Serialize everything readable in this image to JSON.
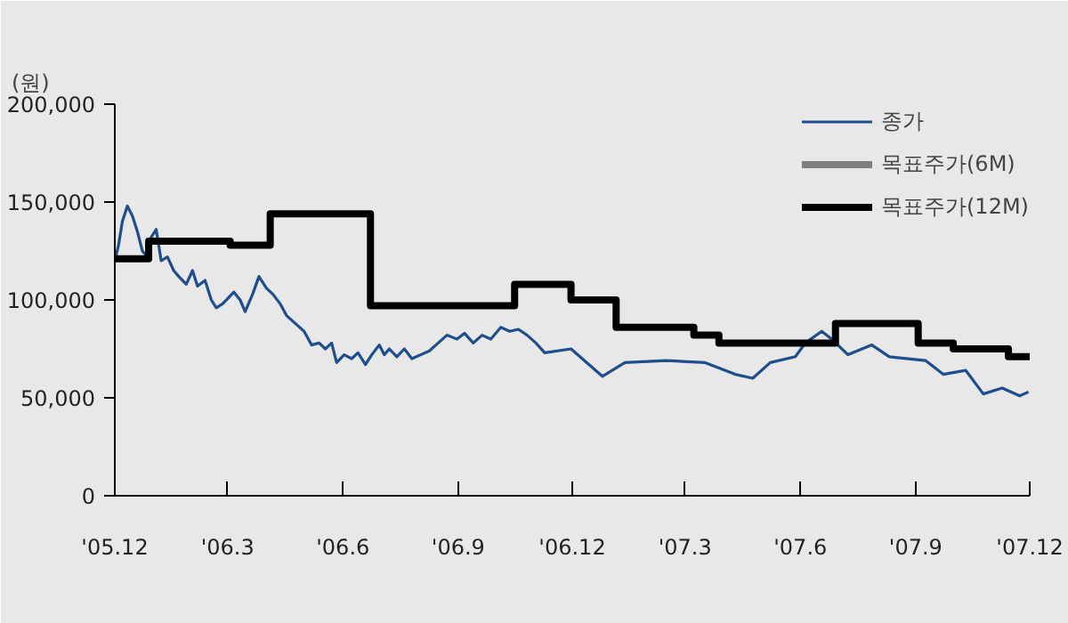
{
  "chart_data": {
    "type": "line",
    "ylabel": "(원)",
    "xlim": [
      "2005-12-01",
      "2007-12-01"
    ],
    "ylim": [
      0,
      200000
    ],
    "xticks": [
      {
        "value": "2005-12",
        "label": "'05.12"
      },
      {
        "value": "2006-03",
        "label": "'06.3"
      },
      {
        "value": "2006-06",
        "label": "'06.6"
      },
      {
        "value": "2006-09",
        "label": "'06.9"
      },
      {
        "value": "2006-12",
        "label": "'06.12"
      },
      {
        "value": "2007-03",
        "label": "'07.3"
      },
      {
        "value": "2007-06",
        "label": "'07.6"
      },
      {
        "value": "2007-09",
        "label": "'07.9"
      },
      {
        "value": "2007-12",
        "label": "'07.12"
      }
    ],
    "yticks": [
      {
        "value": 0,
        "label": "0"
      },
      {
        "value": 50000,
        "label": "50,000"
      },
      {
        "value": 100000,
        "label": "100,000"
      },
      {
        "value": 150000,
        "label": "150,000"
      },
      {
        "value": 200000,
        "label": "200,000"
      }
    ],
    "grid": false,
    "legend": "top right",
    "series": [
      {
        "name": "종가",
        "color": "#1f4e8c",
        "x": [
          "2005-12-01",
          "2005-12-04",
          "2005-12-07",
          "2005-12-11",
          "2005-12-15",
          "2005-12-19",
          "2005-12-23",
          "2005-12-27",
          "2005-12-30",
          "2006-01-03",
          "2006-01-07",
          "2006-01-12",
          "2006-01-17",
          "2006-01-21",
          "2006-01-27",
          "2006-02-01",
          "2006-02-05",
          "2006-02-11",
          "2006-02-16",
          "2006-02-20",
          "2006-02-25",
          "2006-03-06",
          "2006-03-11",
          "2006-03-15",
          "2006-03-21",
          "2006-03-26",
          "2006-04-01",
          "2006-04-06",
          "2006-04-12",
          "2006-04-17",
          "2006-04-24",
          "2006-05-01",
          "2006-05-07",
          "2006-05-13",
          "2006-05-18",
          "2006-05-23",
          "2006-05-27",
          "2006-06-02",
          "2006-06-08",
          "2006-06-13",
          "2006-06-19",
          "2006-06-24",
          "2006-06-30",
          "2006-07-04",
          "2006-07-08",
          "2006-07-14",
          "2006-07-20",
          "2006-07-26",
          "2006-08-02",
          "2006-08-09",
          "2006-08-16",
          "2006-08-23",
          "2006-08-31",
          "2006-09-06",
          "2006-09-13",
          "2006-09-20",
          "2006-09-27",
          "2006-10-05",
          "2006-10-12",
          "2006-10-19",
          "2006-10-26",
          "2006-11-02",
          "2006-11-09",
          "2006-11-30",
          "2006-12-25",
          "2007-01-12",
          "2007-02-14",
          "2007-03-17",
          "2007-04-10",
          "2007-04-24",
          "2007-05-08",
          "2007-05-28",
          "2007-06-05",
          "2007-06-18",
          "2007-06-26",
          "2007-07-09",
          "2007-07-28",
          "2007-08-11",
          "2007-09-09",
          "2007-09-23",
          "2007-10-11",
          "2007-10-25",
          "2007-11-09",
          "2007-11-23",
          "2007-11-30"
        ],
        "values": [
          120000,
          128000,
          140000,
          148000,
          143000,
          135000,
          125000,
          122000,
          132000,
          136000,
          120000,
          122000,
          115000,
          112000,
          108000,
          115000,
          107000,
          110000,
          100000,
          96000,
          98000,
          104000,
          100000,
          94000,
          103000,
          112000,
          106000,
          103000,
          98000,
          92000,
          88000,
          84000,
          77000,
          78000,
          75000,
          78000,
          68000,
          72000,
          70000,
          73000,
          67000,
          72000,
          77000,
          72000,
          75000,
          71000,
          75000,
          70000,
          72000,
          74000,
          78000,
          82000,
          80000,
          83000,
          78000,
          82000,
          80000,
          86000,
          84000,
          85000,
          82000,
          78000,
          73000,
          75000,
          61000,
          68000,
          69000,
          68000,
          62000,
          60000,
          68000,
          71000,
          78000,
          84000,
          80000,
          72000,
          77000,
          71000,
          69000,
          62000,
          64000,
          52000,
          55000,
          51000,
          53000
        ]
      },
      {
        "name": "목표주가(6M)",
        "color": "#808080",
        "type": "step"
      },
      {
        "name": "목표주가(12M)",
        "color": "#000000",
        "type": "step",
        "x": [
          "2005-12-01",
          "2005-12-28",
          "2006-03-03",
          "2006-04-04",
          "2006-06-23",
          "2006-10-16",
          "2006-11-30",
          "2007-01-05",
          "2007-03-08",
          "2007-03-28",
          "2007-06-29",
          "2007-09-03",
          "2007-10-01",
          "2007-11-14",
          "2007-12-01"
        ],
        "values": [
          121000,
          130000,
          128000,
          144000,
          97000,
          108000,
          100000,
          86000,
          82000,
          78000,
          88000,
          78000,
          75000,
          71000,
          71000
        ]
      }
    ]
  }
}
